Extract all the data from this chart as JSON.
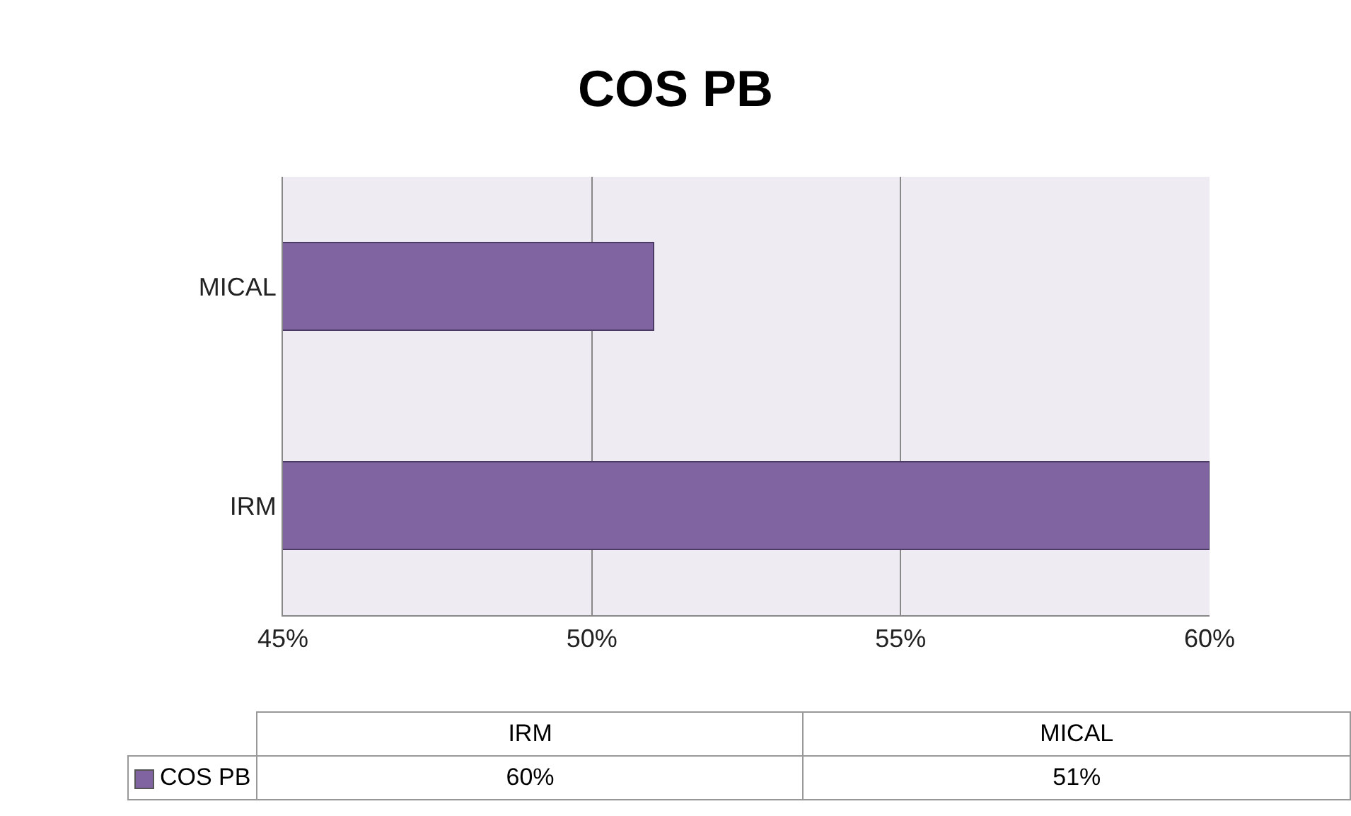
{
  "chart_data": {
    "type": "bar",
    "title": "COS PB",
    "orientation": "horizontal",
    "categories": [
      "MICAL",
      "IRM"
    ],
    "series": [
      {
        "name": "COS PB",
        "color": "#8064a2",
        "values": [
          51,
          60
        ]
      }
    ],
    "xlim": [
      45,
      60
    ],
    "xticks": [
      {
        "value": 45,
        "label": "45%"
      },
      {
        "value": 50,
        "label": "50%"
      },
      {
        "value": 55,
        "label": "55%"
      },
      {
        "value": 60,
        "label": "60%"
      }
    ],
    "grid": "x",
    "legend": "bottom",
    "annotations": [
      "60%",
      "51%"
    ]
  }
}
